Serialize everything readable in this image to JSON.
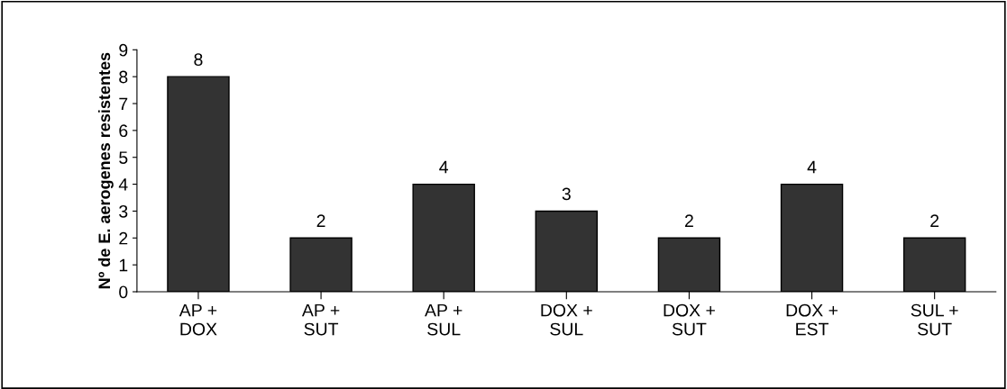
{
  "chart_data": {
    "type": "bar",
    "ylabel": "Nº de E. aerogenes resistentes",
    "categories": [
      "AP +\nDOX",
      "AP +\nSUT",
      "AP +\nSUL",
      "DOX +\nSUL",
      "DOX +\nSUT",
      "DOX +\nEST",
      "SUL +\nSUT"
    ],
    "values": [
      8,
      2,
      4,
      3,
      2,
      4,
      2
    ],
    "color": "#333333",
    "ylim": [
      0,
      9
    ],
    "yticks": [
      0,
      1,
      2,
      3,
      4,
      5,
      6,
      7,
      8,
      9
    ],
    "grid": false,
    "data_labels": true
  }
}
